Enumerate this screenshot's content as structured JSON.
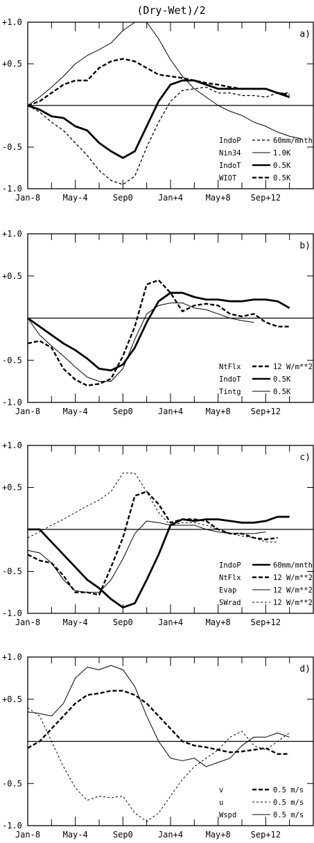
{
  "figure_title": "(Dry-Wet)/2",
  "colors": {
    "ink": "#000000",
    "paper": "#ffffff"
  },
  "chart_data": [
    {
      "type": "line",
      "panel_label": "a)",
      "ylim": [
        -1.0,
        1.0
      ],
      "yticks": [
        {
          "v": 1.0,
          "label": "+1.0"
        },
        {
          "v": 0.5,
          "label": "+0.5"
        },
        {
          "v": -0.5,
          "label": "-0.5"
        },
        {
          "v": -1.0,
          "label": "-1.0"
        }
      ],
      "xlim": [
        0,
        24
      ],
      "xticks": [
        {
          "v": 0,
          "label": "Jan-8"
        },
        {
          "v": 4,
          "label": "May-4"
        },
        {
          "v": 8,
          "label": "Sep0"
        },
        {
          "v": 12,
          "label": "Jan+4"
        },
        {
          "v": 16,
          "label": "May+8"
        },
        {
          "v": 20,
          "label": "Sep+12"
        }
      ],
      "zero_line": true,
      "legend_position": "lower-right",
      "series": [
        {
          "name": "IndoP",
          "scale_label": "60mm/mnth",
          "style": "medium-dash",
          "values": [
            0,
            -0.08,
            -0.2,
            -0.3,
            -0.45,
            -0.6,
            -0.78,
            -0.9,
            -0.95,
            -0.85,
            -0.5,
            -0.2,
            0.05,
            0.18,
            0.2,
            0.22,
            0.15,
            0.15,
            0.12,
            0.12,
            0.1,
            0.15,
            0.15
          ]
        },
        {
          "name": "Nin34",
          "scale_label": "1.0K",
          "style": "thin-solid",
          "values": [
            0,
            0.1,
            0.22,
            0.35,
            0.5,
            0.6,
            0.67,
            0.75,
            0.9,
            1.0,
            1.0,
            0.8,
            0.55,
            0.35,
            0.2,
            0.1,
            0.0,
            -0.07,
            -0.12,
            -0.2,
            -0.25,
            -0.32,
            -0.37,
            -0.4
          ]
        },
        {
          "name": "IndoT",
          "scale_label": "0.5K",
          "style": "thick-solid",
          "values": [
            0,
            -0.05,
            -0.13,
            -0.15,
            -0.25,
            -0.3,
            -0.45,
            -0.55,
            -0.63,
            -0.55,
            -0.25,
            0.05,
            0.25,
            0.3,
            0.3,
            0.25,
            0.2,
            0.2,
            0.2,
            0.2,
            0.2,
            0.15,
            0.1
          ]
        },
        {
          "name": "WIOT",
          "scale_label": "0.5K",
          "style": "thick-dash",
          "values": [
            0,
            0.05,
            0.15,
            0.25,
            0.3,
            0.3,
            0.45,
            0.53,
            0.56,
            0.53,
            0.45,
            0.37,
            0.35,
            0.33,
            0.3,
            0.27,
            0.25,
            0.22,
            0.2,
            0.2,
            0.2,
            0.15,
            0.13
          ]
        }
      ]
    },
    {
      "type": "line",
      "panel_label": "b)",
      "ylim": [
        -1.0,
        1.0
      ],
      "yticks": [
        {
          "v": 1.0,
          "label": "+1.0"
        },
        {
          "v": 0.5,
          "label": "+0.5"
        },
        {
          "v": -0.5,
          "label": "-0.5"
        },
        {
          "v": -1.0,
          "label": "-1.0"
        }
      ],
      "xlim": [
        0,
        24
      ],
      "xticks": [
        {
          "v": 0,
          "label": "Jan-8"
        },
        {
          "v": 4,
          "label": "May-4"
        },
        {
          "v": 8,
          "label": "Sep0"
        },
        {
          "v": 12,
          "label": "Jan+4"
        },
        {
          "v": 16,
          "label": "May+8"
        },
        {
          "v": 20,
          "label": "Sep+12"
        }
      ],
      "zero_line": true,
      "legend_position": "lower-right",
      "series": [
        {
          "name": "NtFlx",
          "scale_label": "12 W/m**2",
          "style": "thick-dash",
          "values": [
            -0.3,
            -0.27,
            -0.35,
            -0.6,
            -0.73,
            -0.8,
            -0.78,
            -0.72,
            -0.45,
            -0.1,
            0.4,
            0.45,
            0.3,
            0.08,
            0.15,
            0.17,
            0.15,
            0.05,
            0.02,
            0.05,
            -0.05,
            -0.1,
            -0.1
          ]
        },
        {
          "name": "IndoT",
          "scale_label": "0.5K",
          "style": "thick-solid",
          "values": [
            0,
            -0.1,
            -0.2,
            -0.3,
            -0.38,
            -0.48,
            -0.6,
            -0.62,
            -0.55,
            -0.35,
            -0.05,
            0.2,
            0.3,
            0.3,
            0.25,
            0.22,
            0.22,
            0.2,
            0.2,
            0.22,
            0.22,
            0.2,
            0.12
          ]
        },
        {
          "name": "Tintg",
          "scale_label": "0.5K",
          "style": "thin-solid",
          "values": [
            0,
            -0.2,
            -0.33,
            -0.45,
            -0.58,
            -0.7,
            -0.75,
            -0.75,
            -0.6,
            -0.25,
            0.05,
            0.15,
            0.18,
            0.18,
            0.12,
            0.1,
            0.05,
            0.0,
            -0.03,
            -0.05
          ]
        }
      ]
    },
    {
      "type": "line",
      "panel_label": "c)",
      "ylim": [
        -1.0,
        1.0
      ],
      "yticks": [
        {
          "v": 1.0,
          "label": "+1.0"
        },
        {
          "v": 0.5,
          "label": "+0.5"
        },
        {
          "v": -0.5,
          "label": "-0.5"
        },
        {
          "v": -1.0,
          "label": "-1.0"
        }
      ],
      "xlim": [
        0,
        24
      ],
      "xticks": [
        {
          "v": 0,
          "label": "Jan-8"
        },
        {
          "v": 4,
          "label": "May-4"
        },
        {
          "v": 8,
          "label": "Sep0"
        },
        {
          "v": 12,
          "label": "Jan+4"
        },
        {
          "v": 16,
          "label": "May+8"
        },
        {
          "v": 20,
          "label": "Sep+12"
        }
      ],
      "zero_line": true,
      "legend_position": "lower-right",
      "series": [
        {
          "name": "IndoP",
          "scale_label": "60mm/mnth",
          "style": "thick-solid",
          "values": [
            0,
            0,
            -0.15,
            -0.3,
            -0.45,
            -0.6,
            -0.7,
            -0.83,
            -0.93,
            -0.88,
            -0.6,
            -0.3,
            0.05,
            0.12,
            0.1,
            0.12,
            0.12,
            0.1,
            0.08,
            0.08,
            0.1,
            0.15,
            0.15
          ]
        },
        {
          "name": "NtFlx",
          "scale_label": "12 W/m**2",
          "style": "thick-dash",
          "values": [
            -0.3,
            -0.37,
            -0.4,
            -0.55,
            -0.75,
            -0.75,
            -0.78,
            -0.45,
            -0.1,
            0.4,
            0.45,
            0.3,
            0.08,
            0.12,
            0.12,
            0.1,
            0.0,
            -0.05,
            -0.05,
            -0.1,
            -0.12,
            -0.1
          ]
        },
        {
          "name": "Evap",
          "scale_label": "12 W/m**2",
          "style": "thin-solid",
          "values": [
            -0.25,
            -0.28,
            -0.4,
            -0.6,
            -0.73,
            -0.75,
            -0.75,
            -0.6,
            -0.35,
            -0.05,
            0.1,
            0.08,
            0.05,
            0.05,
            0.05,
            0.0,
            -0.03,
            -0.05,
            -0.05,
            -0.05,
            -0.03
          ]
        },
        {
          "name": "SWrad",
          "scale_label": "12 W/m**2",
          "style": "thin-dash",
          "values": [
            -0.1,
            -0.03,
            0.05,
            0.12,
            0.2,
            0.28,
            0.35,
            0.45,
            0.67,
            0.67,
            0.45,
            0.2,
            0.05,
            0.08,
            0.08,
            0.05,
            0.0,
            -0.05,
            -0.08,
            -0.1,
            -0.15,
            -0.15
          ]
        }
      ]
    },
    {
      "type": "line",
      "panel_label": "d)",
      "ylim": [
        -1.0,
        1.0
      ],
      "yticks": [
        {
          "v": 1.0,
          "label": "+1.0"
        },
        {
          "v": 0.5,
          "label": "+0.5"
        },
        {
          "v": -0.5,
          "label": "-0.5"
        },
        {
          "v": -1.0,
          "label": "-1.0"
        }
      ],
      "xlim": [
        0,
        24
      ],
      "xticks": [
        {
          "v": 0,
          "label": "Jan-8"
        },
        {
          "v": 4,
          "label": "May-4"
        },
        {
          "v": 8,
          "label": "Sep0"
        },
        {
          "v": 12,
          "label": "Jan+4"
        },
        {
          "v": 16,
          "label": "May+8"
        },
        {
          "v": 20,
          "label": "Sep+12"
        }
      ],
      "zero_line": true,
      "legend_position": "lower-right",
      "series": [
        {
          "name": "v",
          "scale_label": "0.5 m/s",
          "style": "thick-dash",
          "values": [
            -0.08,
            0.0,
            0.15,
            0.3,
            0.45,
            0.55,
            0.57,
            0.6,
            0.6,
            0.55,
            0.45,
            0.3,
            0.15,
            0.0,
            -0.05,
            -0.07,
            -0.1,
            -0.13,
            -0.12,
            -0.1,
            -0.08,
            -0.15,
            -0.15
          ]
        },
        {
          "name": "u",
          "scale_label": "0.5 m/s",
          "style": "thin-dash",
          "values": [
            0.4,
            0.3,
            0.0,
            -0.3,
            -0.55,
            -0.7,
            -0.65,
            -0.67,
            -0.65,
            -0.85,
            -0.95,
            -0.85,
            -0.65,
            -0.45,
            -0.3,
            -0.2,
            -0.1,
            0.05,
            0.12,
            -0.05,
            -0.1,
            0.0,
            0.1
          ]
        },
        {
          "name": "Wspd",
          "scale_label": "0.5 m/s",
          "style": "thin-solid",
          "values": [
            0.35,
            0.33,
            0.3,
            0.45,
            0.75,
            0.88,
            0.85,
            0.9,
            0.85,
            0.65,
            0.3,
            0.0,
            -0.2,
            -0.23,
            -0.2,
            -0.3,
            -0.25,
            -0.2,
            -0.05,
            0.05,
            0.05,
            0.1,
            0.05
          ]
        }
      ]
    }
  ]
}
